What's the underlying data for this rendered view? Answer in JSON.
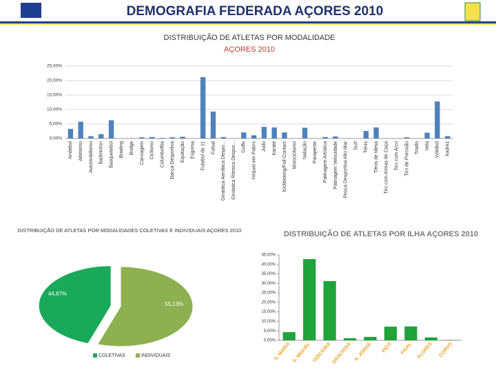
{
  "header": {
    "title": "DEMOGRAFIA FEDERADA AÇORES 2010"
  },
  "chart_data": [
    {
      "type": "bar",
      "title": "DISTRIBUIÇÃO DE ATLETAS POR MODALIDADE",
      "subtitle": "AÇORES 2010",
      "color": "#4f81bd",
      "grid": true,
      "categories": [
        "Andebol",
        "Atletismo",
        "Automobilismo",
        "Badminton",
        "Basquetebol",
        "Bowling",
        "Bridge",
        "Canoagem",
        "Ciclismo",
        "Columbofilia",
        "Dança Desportiva",
        "Equitação",
        "Esgrima",
        "Futebol de 11",
        "Futsal",
        "Ginástica Aeróbica Despo...",
        "Ginástica Rítmica Despor...",
        "Golfe",
        "Hóquei em Patins",
        "Judo",
        "Karaté",
        "Kickboxing/Full-Contact",
        "Motociclismo",
        "Natação",
        "Parapente",
        "Patinagem Artística",
        "Patinagem Velocidade",
        "Pesca Desportiva Alto Mar",
        "Surf",
        "Ténis",
        "Ténis de Mesa",
        "Tiro com Armas de Caça",
        "Tiro com Arco",
        "Tiro de Precisão",
        "Triatlo",
        "Vela",
        "Voleibol",
        "Xadrez"
      ],
      "values": [
        3.3,
        5.8,
        0.8,
        1.5,
        6.3,
        0,
        0.1,
        0.4,
        0.5,
        0.2,
        0.4,
        0.6,
        0,
        21.2,
        9.3,
        0.5,
        0,
        2.1,
        1.1,
        4.0,
        3.8,
        2.1,
        0,
        3.7,
        0,
        0.5,
        0.7,
        0,
        0,
        2.6,
        3.8,
        0,
        0,
        0.4,
        0,
        2.0,
        12.8,
        0.8
      ],
      "ylim": [
        0,
        25
      ],
      "yticks": [
        {
          "value": 0,
          "label": "0,00%"
        },
        {
          "value": 5,
          "label": "5,00%"
        },
        {
          "value": 10,
          "label": "10,00%"
        },
        {
          "value": 15,
          "label": "15,00%"
        },
        {
          "value": 20,
          "label": "20,00%"
        },
        {
          "value": 25,
          "label": "25,00%"
        }
      ]
    },
    {
      "type": "pie",
      "title": "DISTRIBUIÇÃO DE ATLETAS POR MODALIDADES COLETIVAS E INDIVIDUAIS AÇORES 2010",
      "categories": [
        "COLETIVAS",
        "INDIVIDUAIS"
      ],
      "values": [
        44.87,
        55.13
      ],
      "value_labels": [
        "44,87%",
        "55,13%"
      ],
      "colors": [
        "#1aa95a",
        "#8db050"
      ]
    },
    {
      "type": "bar",
      "title": "DISTRIBUIÇÃO DE ATLETAS POR ILHA AÇORES 2010",
      "color": "#1fa33a",
      "categories": [
        "S. MARIA",
        "S. MIGUEL",
        "TERCEIRA",
        "GRACIOSA",
        "S. JORGE",
        "PICO",
        "FAIAL",
        "FLORES",
        "CORVO"
      ],
      "values": [
        4.3,
        42.8,
        31.2,
        1.1,
        1.8,
        7.2,
        7.3,
        1.5,
        0.2
      ],
      "ylim": [
        0,
        45
      ],
      "yticks": [
        {
          "value": 0,
          "label": "0,00%"
        },
        {
          "value": 5,
          "label": "5,00%"
        },
        {
          "value": 10,
          "label": "10,00%"
        },
        {
          "value": 15,
          "label": "15,00%"
        },
        {
          "value": 20,
          "label": "20,00%"
        },
        {
          "value": 25,
          "label": "25,00%"
        },
        {
          "value": 30,
          "label": "30,00%"
        },
        {
          "value": 35,
          "label": "35,00%"
        },
        {
          "value": 40,
          "label": "40,00%"
        },
        {
          "value": 45,
          "label": "45,00%"
        }
      ]
    }
  ]
}
